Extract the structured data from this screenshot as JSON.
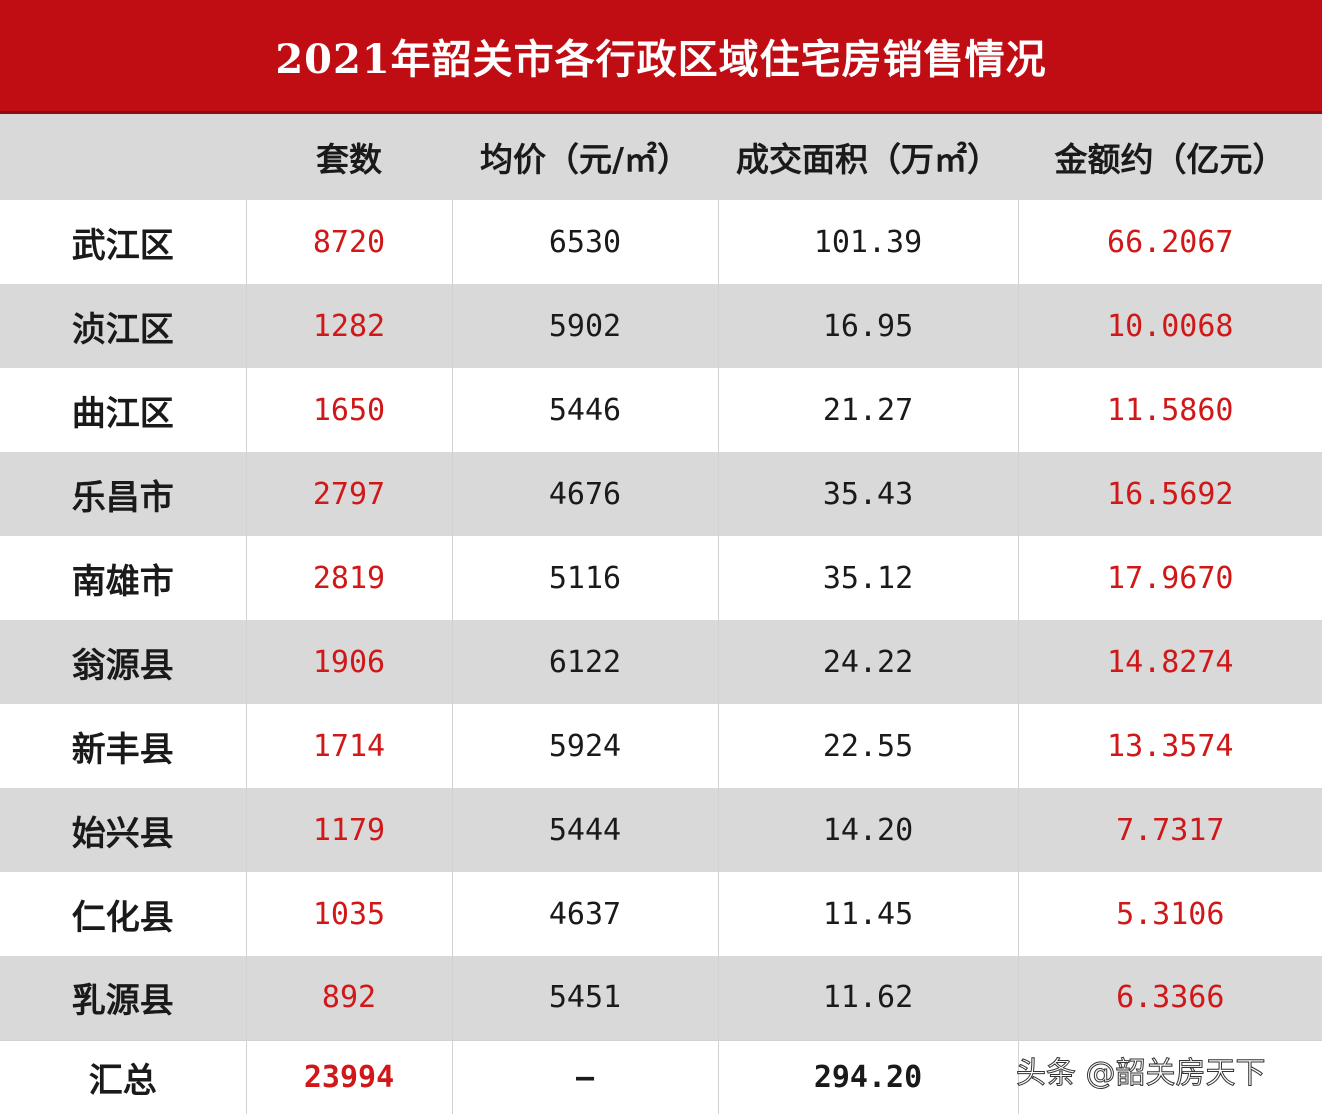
{
  "title": "2021年韶关市各行政区域住宅房销售情况",
  "columns": [
    "",
    "套数",
    "均价（元/㎡）",
    "成交面积（万㎡）",
    "金额约（亿元）"
  ],
  "rows": [
    {
      "region": "武江区",
      "units": "8720",
      "avg_price": "6530",
      "area": "101.39",
      "amount": "66.2067"
    },
    {
      "region": "浈江区",
      "units": "1282",
      "avg_price": "5902",
      "area": "16.95",
      "amount": "10.0068"
    },
    {
      "region": "曲江区",
      "units": "1650",
      "avg_price": "5446",
      "area": "21.27",
      "amount": "11.5860"
    },
    {
      "region": "乐昌市",
      "units": "2797",
      "avg_price": "4676",
      "area": "35.43",
      "amount": "16.5692"
    },
    {
      "region": "南雄市",
      "units": "2819",
      "avg_price": "5116",
      "area": "35.12",
      "amount": "17.9670"
    },
    {
      "region": "翁源县",
      "units": "1906",
      "avg_price": "6122",
      "area": "24.22",
      "amount": "14.8274"
    },
    {
      "region": "新丰县",
      "units": "1714",
      "avg_price": "5924",
      "area": "22.55",
      "amount": "13.3574"
    },
    {
      "region": "始兴县",
      "units": "1179",
      "avg_price": "5444",
      "area": "14.20",
      "amount": "7.7317"
    },
    {
      "region": "仁化县",
      "units": "1035",
      "avg_price": "4637",
      "area": "11.45",
      "amount": "5.3106"
    },
    {
      "region": "乳源县",
      "units": "892",
      "avg_price": "5451",
      "area": "11.62",
      "amount": "6.3366"
    }
  ],
  "total": {
    "region": "汇总",
    "units": "23994",
    "avg_price": "—",
    "area": "294.20",
    "amount": ""
  },
  "watermark": "头条 @韶关房天下",
  "colors": {
    "title_bg": "#c00d14",
    "highlight_text": "#d01818",
    "stripe": "#d9d9d9"
  }
}
